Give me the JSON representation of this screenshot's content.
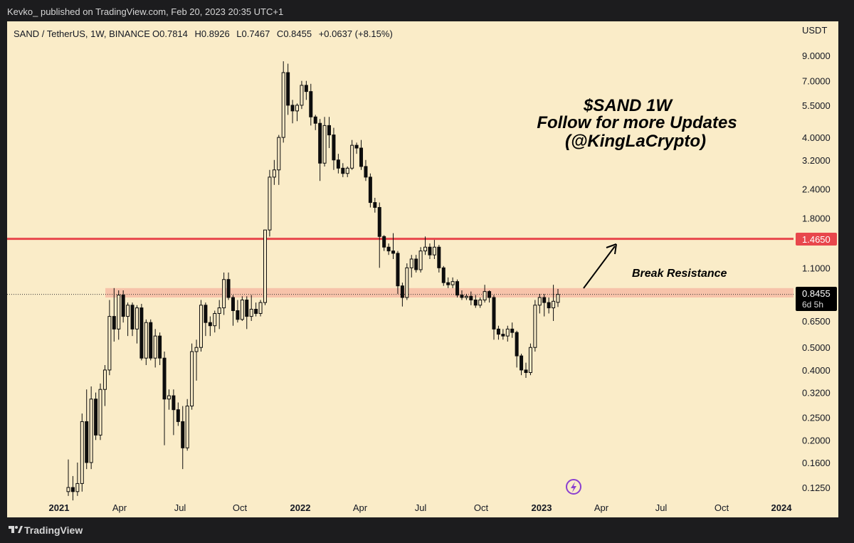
{
  "header": {
    "publisher_line": "Kevko_ published on TradingView.com, Feb 20, 2023 20:35 UTC+1"
  },
  "legend": {
    "symbol": "SAND / TetherUS, 1W, BINANCE",
    "o_label": "O",
    "open": "0.7814",
    "h_label": "H",
    "high": "0.8926",
    "l_label": "L",
    "low": "0.7467",
    "c_label": "C",
    "close": "0.8455",
    "change": "+0.0637 (+8.15%)"
  },
  "annotation": {
    "line1": "$SAND 1W",
    "line2": "Follow for more Updates",
    "line3": "(@KingLaCrypto)",
    "break_label": "Break Resistance"
  },
  "axis": {
    "currency": "USDT"
  },
  "price_tag": {
    "value": "0.8455",
    "countdown": "6d 5h"
  },
  "resistance_tag": {
    "value": "1.4650"
  },
  "footer": {
    "brand": "TradingView"
  },
  "colors": {
    "background": "#faecc8",
    "candle": "#0d0d0d",
    "resistance": "#e8474c",
    "zone": "#f6bca4",
    "axis_tag": "#000000"
  },
  "icons": {
    "lightning": "lightning-icon",
    "logo": "tradingview-logo-icon"
  },
  "chart_data": {
    "type": "candlestick",
    "y_scale": "log",
    "y_ticks": [
      9.0,
      7.0,
      5.5,
      4.0,
      3.2,
      2.4,
      1.8,
      1.1,
      0.65,
      0.5,
      0.4,
      0.32,
      0.25,
      0.2,
      0.16,
      0.125
    ],
    "y_tick_labels": [
      "9.0000",
      "7.0000",
      "5.5000",
      "4.0000",
      "3.2000",
      "2.4000",
      "1.8000",
      "1.1000",
      "0.6500",
      "0.5000",
      "0.4000",
      "0.3200",
      "0.2500",
      "0.2000",
      "0.1600",
      "0.1250"
    ],
    "x_ticks": [
      "2021",
      "Apr",
      "Jul",
      "Oct",
      "2022",
      "Apr",
      "Jul",
      "Oct",
      "2023",
      "Apr",
      "Jul",
      "Oct",
      "2024"
    ],
    "x_ticks_bold": [
      true,
      false,
      false,
      false,
      true,
      false,
      false,
      false,
      true,
      false,
      false,
      false,
      true
    ],
    "resistance_level": 1.465,
    "support_zone": [
      0.82,
      0.9
    ],
    "last_price": 0.8455,
    "candles": [
      {
        "o": 0.12,
        "h": 0.165,
        "l": 0.115,
        "c": 0.125
      },
      {
        "o": 0.125,
        "h": 0.14,
        "l": 0.11,
        "c": 0.12
      },
      {
        "o": 0.12,
        "h": 0.16,
        "l": 0.115,
        "c": 0.13
      },
      {
        "o": 0.13,
        "h": 0.26,
        "l": 0.12,
        "c": 0.24
      },
      {
        "o": 0.24,
        "h": 0.33,
        "l": 0.15,
        "c": 0.16
      },
      {
        "o": 0.16,
        "h": 0.34,
        "l": 0.15,
        "c": 0.3
      },
      {
        "o": 0.3,
        "h": 0.32,
        "l": 0.2,
        "c": 0.21
      },
      {
        "o": 0.21,
        "h": 0.35,
        "l": 0.2,
        "c": 0.33
      },
      {
        "o": 0.33,
        "h": 0.42,
        "l": 0.28,
        "c": 0.4
      },
      {
        "o": 0.4,
        "h": 0.8,
        "l": 0.38,
        "c": 0.68
      },
      {
        "o": 0.68,
        "h": 0.9,
        "l": 0.53,
        "c": 0.6
      },
      {
        "o": 0.6,
        "h": 0.88,
        "l": 0.54,
        "c": 0.84
      },
      {
        "o": 0.84,
        "h": 0.88,
        "l": 0.64,
        "c": 0.68
      },
      {
        "o": 0.68,
        "h": 0.78,
        "l": 0.56,
        "c": 0.76
      },
      {
        "o": 0.76,
        "h": 0.78,
        "l": 0.56,
        "c": 0.6
      },
      {
        "o": 0.6,
        "h": 0.76,
        "l": 0.52,
        "c": 0.74
      },
      {
        "o": 0.74,
        "h": 0.77,
        "l": 0.44,
        "c": 0.45
      },
      {
        "o": 0.45,
        "h": 0.66,
        "l": 0.42,
        "c": 0.64
      },
      {
        "o": 0.64,
        "h": 0.66,
        "l": 0.44,
        "c": 0.45
      },
      {
        "o": 0.45,
        "h": 0.6,
        "l": 0.41,
        "c": 0.56
      },
      {
        "o": 0.56,
        "h": 0.58,
        "l": 0.42,
        "c": 0.45
      },
      {
        "o": 0.45,
        "h": 0.48,
        "l": 0.19,
        "c": 0.3
      },
      {
        "o": 0.3,
        "h": 0.33,
        "l": 0.27,
        "c": 0.31
      },
      {
        "o": 0.31,
        "h": 0.33,
        "l": 0.21,
        "c": 0.27
      },
      {
        "o": 0.27,
        "h": 0.29,
        "l": 0.23,
        "c": 0.24
      },
      {
        "o": 0.24,
        "h": 0.28,
        "l": 0.15,
        "c": 0.185
      },
      {
        "o": 0.185,
        "h": 0.3,
        "l": 0.18,
        "c": 0.28
      },
      {
        "o": 0.28,
        "h": 0.52,
        "l": 0.27,
        "c": 0.48
      },
      {
        "o": 0.48,
        "h": 0.54,
        "l": 0.36,
        "c": 0.5
      },
      {
        "o": 0.5,
        "h": 0.8,
        "l": 0.48,
        "c": 0.76
      },
      {
        "o": 0.76,
        "h": 0.78,
        "l": 0.56,
        "c": 0.64
      },
      {
        "o": 0.64,
        "h": 0.68,
        "l": 0.56,
        "c": 0.62
      },
      {
        "o": 0.62,
        "h": 0.72,
        "l": 0.58,
        "c": 0.7
      },
      {
        "o": 0.7,
        "h": 0.8,
        "l": 0.6,
        "c": 0.74
      },
      {
        "o": 0.74,
        "h": 1.05,
        "l": 0.69,
        "c": 0.98
      },
      {
        "o": 0.98,
        "h": 1.05,
        "l": 0.8,
        "c": 0.82
      },
      {
        "o": 0.82,
        "h": 0.84,
        "l": 0.62,
        "c": 0.72
      },
      {
        "o": 0.72,
        "h": 0.8,
        "l": 0.64,
        "c": 0.66
      },
      {
        "o": 0.66,
        "h": 0.83,
        "l": 0.65,
        "c": 0.8
      },
      {
        "o": 0.8,
        "h": 0.83,
        "l": 0.6,
        "c": 0.68
      },
      {
        "o": 0.68,
        "h": 0.84,
        "l": 0.65,
        "c": 0.73
      },
      {
        "o": 0.73,
        "h": 0.78,
        "l": 0.68,
        "c": 0.7
      },
      {
        "o": 0.7,
        "h": 0.8,
        "l": 0.68,
        "c": 0.78
      },
      {
        "o": 0.78,
        "h": 1.6,
        "l": 0.76,
        "c": 1.6
      },
      {
        "o": 1.6,
        "h": 2.9,
        "l": 1.5,
        "c": 2.7
      },
      {
        "o": 2.7,
        "h": 3.2,
        "l": 2.5,
        "c": 2.9
      },
      {
        "o": 2.9,
        "h": 4.1,
        "l": 2.5,
        "c": 4.0
      },
      {
        "o": 4.0,
        "h": 8.5,
        "l": 3.8,
        "c": 7.6
      },
      {
        "o": 7.6,
        "h": 8.3,
        "l": 5.0,
        "c": 5.5
      },
      {
        "o": 5.5,
        "h": 5.8,
        "l": 4.6,
        "c": 5.2
      },
      {
        "o": 5.2,
        "h": 5.6,
        "l": 4.7,
        "c": 5.5
      },
      {
        "o": 5.5,
        "h": 7.0,
        "l": 5.3,
        "c": 6.7
      },
      {
        "o": 6.7,
        "h": 7.0,
        "l": 5.8,
        "c": 6.3
      },
      {
        "o": 6.3,
        "h": 6.8,
        "l": 4.5,
        "c": 4.9
      },
      {
        "o": 4.9,
        "h": 5.0,
        "l": 4.3,
        "c": 4.6
      },
      {
        "o": 4.6,
        "h": 4.8,
        "l": 2.6,
        "c": 3.1
      },
      {
        "o": 3.1,
        "h": 4.9,
        "l": 3.0,
        "c": 4.5
      },
      {
        "o": 4.5,
        "h": 4.9,
        "l": 3.6,
        "c": 4.1
      },
      {
        "o": 4.1,
        "h": 4.4,
        "l": 2.9,
        "c": 3.2
      },
      {
        "o": 3.2,
        "h": 3.4,
        "l": 2.8,
        "c": 2.95
      },
      {
        "o": 2.95,
        "h": 3.1,
        "l": 2.7,
        "c": 2.8
      },
      {
        "o": 2.8,
        "h": 3.0,
        "l": 2.7,
        "c": 2.95
      },
      {
        "o": 2.95,
        "h": 3.9,
        "l": 2.9,
        "c": 3.7
      },
      {
        "o": 3.7,
        "h": 3.8,
        "l": 3.4,
        "c": 3.6
      },
      {
        "o": 3.6,
        "h": 3.9,
        "l": 2.9,
        "c": 3.0
      },
      {
        "o": 3.0,
        "h": 3.2,
        "l": 2.6,
        "c": 2.7
      },
      {
        "o": 2.7,
        "h": 2.8,
        "l": 2.0,
        "c": 2.1
      },
      {
        "o": 2.1,
        "h": 2.2,
        "l": 1.9,
        "c": 2.0
      },
      {
        "o": 2.0,
        "h": 2.1,
        "l": 1.1,
        "c": 1.5
      },
      {
        "o": 1.5,
        "h": 1.52,
        "l": 1.3,
        "c": 1.35
      },
      {
        "o": 1.35,
        "h": 1.4,
        "l": 1.25,
        "c": 1.3
      },
      {
        "o": 1.3,
        "h": 1.55,
        "l": 1.2,
        "c": 1.27
      },
      {
        "o": 1.27,
        "h": 1.3,
        "l": 0.85,
        "c": 0.92
      },
      {
        "o": 0.92,
        "h": 0.95,
        "l": 0.75,
        "c": 0.82
      },
      {
        "o": 0.82,
        "h": 1.15,
        "l": 0.8,
        "c": 1.1
      },
      {
        "o": 1.1,
        "h": 1.25,
        "l": 1.0,
        "c": 1.2
      },
      {
        "o": 1.2,
        "h": 1.25,
        "l": 1.05,
        "c": 1.08
      },
      {
        "o": 1.08,
        "h": 1.35,
        "l": 1.05,
        "c": 1.3
      },
      {
        "o": 1.3,
        "h": 1.5,
        "l": 1.25,
        "c": 1.35
      },
      {
        "o": 1.35,
        "h": 1.4,
        "l": 1.2,
        "c": 1.25
      },
      {
        "o": 1.25,
        "h": 1.45,
        "l": 1.2,
        "c": 1.35
      },
      {
        "o": 1.35,
        "h": 1.38,
        "l": 1.05,
        "c": 1.1
      },
      {
        "o": 1.1,
        "h": 1.12,
        "l": 0.92,
        "c": 0.95
      },
      {
        "o": 0.95,
        "h": 1.0,
        "l": 0.9,
        "c": 0.93
      },
      {
        "o": 0.93,
        "h": 1.0,
        "l": 0.9,
        "c": 0.96
      },
      {
        "o": 0.96,
        "h": 0.98,
        "l": 0.82,
        "c": 0.84
      },
      {
        "o": 0.84,
        "h": 0.88,
        "l": 0.8,
        "c": 0.82
      },
      {
        "o": 0.82,
        "h": 0.85,
        "l": 0.8,
        "c": 0.83
      },
      {
        "o": 0.83,
        "h": 0.87,
        "l": 0.76,
        "c": 0.8
      },
      {
        "o": 0.8,
        "h": 0.84,
        "l": 0.74,
        "c": 0.76
      },
      {
        "o": 0.76,
        "h": 0.82,
        "l": 0.74,
        "c": 0.8
      },
      {
        "o": 0.8,
        "h": 0.93,
        "l": 0.78,
        "c": 0.87
      },
      {
        "o": 0.87,
        "h": 0.88,
        "l": 0.78,
        "c": 0.82
      },
      {
        "o": 0.82,
        "h": 0.84,
        "l": 0.54,
        "c": 0.6
      },
      {
        "o": 0.6,
        "h": 0.62,
        "l": 0.54,
        "c": 0.57
      },
      {
        "o": 0.57,
        "h": 0.6,
        "l": 0.54,
        "c": 0.56
      },
      {
        "o": 0.56,
        "h": 0.62,
        "l": 0.53,
        "c": 0.6
      },
      {
        "o": 0.6,
        "h": 0.64,
        "l": 0.55,
        "c": 0.58
      },
      {
        "o": 0.58,
        "h": 0.59,
        "l": 0.41,
        "c": 0.46
      },
      {
        "o": 0.46,
        "h": 0.47,
        "l": 0.38,
        "c": 0.4
      },
      {
        "o": 0.4,
        "h": 0.43,
        "l": 0.37,
        "c": 0.39
      },
      {
        "o": 0.39,
        "h": 0.52,
        "l": 0.38,
        "c": 0.5
      },
      {
        "o": 0.5,
        "h": 0.8,
        "l": 0.48,
        "c": 0.76
      },
      {
        "o": 0.76,
        "h": 0.85,
        "l": 0.7,
        "c": 0.82
      },
      {
        "o": 0.82,
        "h": 0.85,
        "l": 0.68,
        "c": 0.78
      },
      {
        "o": 0.78,
        "h": 0.82,
        "l": 0.7,
        "c": 0.74
      },
      {
        "o": 0.74,
        "h": 0.93,
        "l": 0.65,
        "c": 0.79
      },
      {
        "o": 0.7814,
        "h": 0.8926,
        "l": 0.7467,
        "c": 0.8455
      }
    ]
  }
}
